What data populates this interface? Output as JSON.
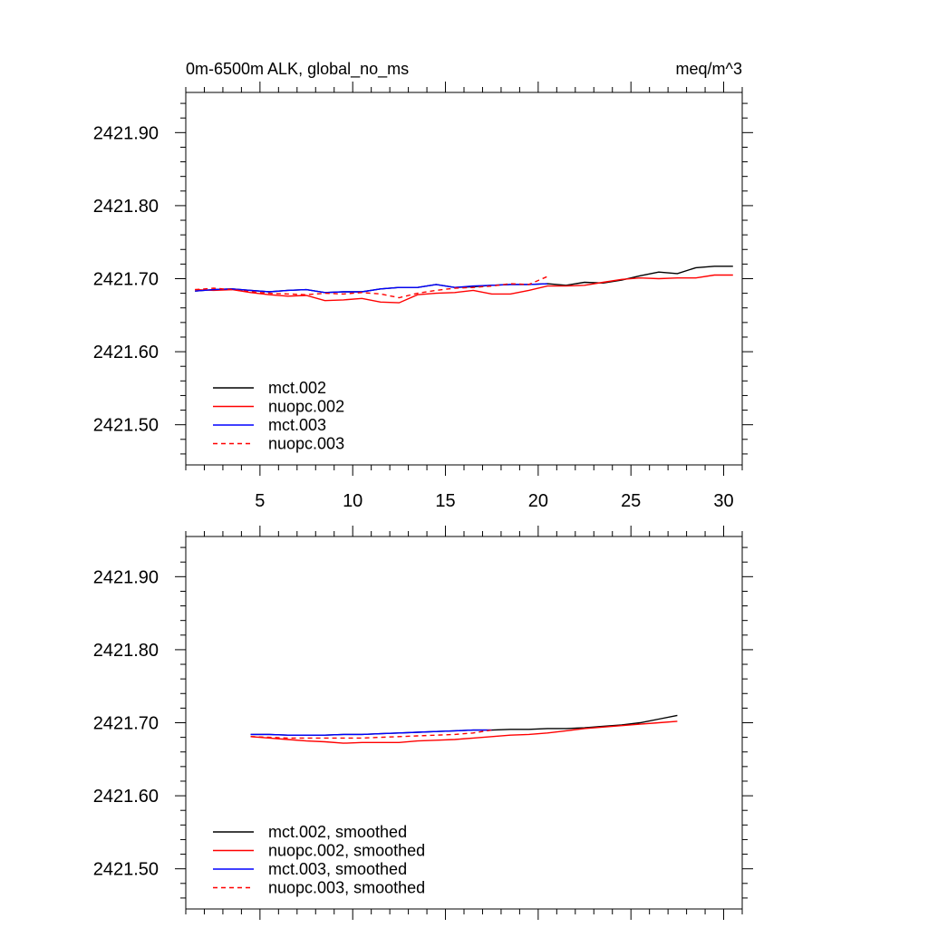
{
  "chart_data": [
    {
      "type": "line",
      "title_left": "0m-6500m ALK, global_no_ms",
      "title_right": "meq/m^3",
      "xlim": [
        1,
        31
      ],
      "ylim": [
        2421.445,
        2421.955
      ],
      "x_ticks": [
        5,
        10,
        15,
        20,
        25,
        30
      ],
      "x_tick_labels": [
        "5",
        "10",
        "15",
        "20",
        "25",
        "30"
      ],
      "y_ticks": [
        2421.5,
        2421.6,
        2421.7,
        2421.8,
        2421.9
      ],
      "y_tick_labels": [
        "2421.50",
        "2421.60",
        "2421.70",
        "2421.80",
        "2421.90"
      ],
      "legend_position": "bottom-left",
      "series": [
        {
          "name": "mct.002",
          "color": "#000000",
          "dash": "solid",
          "x": [
            1.5,
            2.5,
            3.5,
            4.5,
            5.5,
            6.5,
            7.5,
            8.5,
            9.5,
            10.5,
            11.5,
            12.5,
            13.5,
            14.5,
            15.5,
            16.5,
            17.5,
            18.5,
            19.5,
            20.5,
            21.5,
            22.5,
            23.5,
            24.5,
            25.5,
            26.5,
            27.5,
            28.5,
            29.5,
            30.5
          ],
          "values": [
            2421.683,
            2421.685,
            2421.686,
            2421.684,
            2421.682,
            2421.684,
            2421.685,
            2421.681,
            2421.682,
            2421.682,
            2421.686,
            2421.688,
            2421.688,
            2421.692,
            2421.688,
            2421.689,
            2421.691,
            2421.692,
            2421.692,
            2421.693,
            2421.691,
            2421.695,
            2421.694,
            2421.698,
            2421.704,
            2421.709,
            2421.707,
            2421.715,
            2421.717,
            2421.717
          ]
        },
        {
          "name": "nuopc.002",
          "color": "#ff0000",
          "dash": "solid",
          "x": [
            1.5,
            2.5,
            3.5,
            4.5,
            5.5,
            6.5,
            7.5,
            8.5,
            9.5,
            10.5,
            11.5,
            12.5,
            13.5,
            14.5,
            15.5,
            16.5,
            17.5,
            18.5,
            19.5,
            20.5,
            21.5,
            22.5,
            23.5,
            24.5,
            25.5,
            26.5,
            27.5,
            28.5,
            29.5,
            30.5
          ],
          "values": [
            2421.685,
            2421.684,
            2421.685,
            2421.681,
            2421.678,
            2421.676,
            2421.677,
            2421.67,
            2421.671,
            2421.673,
            2421.668,
            2421.667,
            2421.678,
            2421.68,
            2421.681,
            2421.684,
            2421.679,
            2421.679,
            2421.684,
            2421.69,
            2421.69,
            2421.691,
            2421.695,
            2421.699,
            2421.701,
            2421.7,
            2421.701,
            2421.701,
            2421.705,
            2421.705
          ]
        },
        {
          "name": "mct.003",
          "color": "#0000ff",
          "dash": "solid",
          "x": [
            1.5,
            2.5,
            3.5,
            4.5,
            5.5,
            6.5,
            7.5,
            8.5,
            9.5,
            10.5,
            11.5,
            12.5,
            13.5,
            14.5,
            15.5,
            16.5,
            17.5,
            18.5,
            19.5,
            20.5
          ],
          "values": [
            2421.683,
            2421.685,
            2421.686,
            2421.684,
            2421.682,
            2421.684,
            2421.685,
            2421.681,
            2421.682,
            2421.682,
            2421.686,
            2421.688,
            2421.688,
            2421.692,
            2421.688,
            2421.69,
            2421.691,
            2421.692,
            2421.692,
            2421.693
          ]
        },
        {
          "name": "nuopc.003",
          "color": "#ff0000",
          "dash": "dashed",
          "x": [
            1.5,
            2.5,
            3.5,
            4.5,
            5.5,
            6.5,
            7.5,
            8.5,
            9.5,
            10.5,
            11.5,
            12.5,
            13.5,
            14.5,
            15.5,
            16.5,
            17.5,
            18.5,
            19.5,
            20.5
          ],
          "values": [
            2421.685,
            2421.687,
            2421.685,
            2421.682,
            2421.68,
            2421.679,
            2421.678,
            2421.68,
            2421.679,
            2421.681,
            2421.679,
            2421.674,
            2421.68,
            2421.684,
            2421.687,
            2421.688,
            2421.69,
            2421.693,
            2421.692,
            2421.703
          ]
        }
      ]
    },
    {
      "type": "line",
      "xlim": [
        1,
        31
      ],
      "ylim": [
        2421.445,
        2421.955
      ],
      "x_ticks": [
        5,
        10,
        15,
        20,
        25,
        30
      ],
      "y_ticks": [
        2421.5,
        2421.6,
        2421.7,
        2421.8,
        2421.9
      ],
      "y_tick_labels": [
        "2421.50",
        "2421.60",
        "2421.70",
        "2421.80",
        "2421.90"
      ],
      "legend_position": "bottom-left",
      "series": [
        {
          "name": "mct.002, smoothed",
          "color": "#000000",
          "dash": "solid",
          "x": [
            4.5,
            5.5,
            6.5,
            7.5,
            8.5,
            9.5,
            10.5,
            11.5,
            12.5,
            13.5,
            14.5,
            15.5,
            16.5,
            17.5,
            18.5,
            19.5,
            20.5,
            21.5,
            22.5,
            23.5,
            24.5,
            25.5,
            26.5,
            27.5
          ],
          "values": [
            2421.684,
            2421.684,
            2421.683,
            2421.683,
            2421.683,
            2421.684,
            2421.684,
            2421.685,
            2421.686,
            2421.687,
            2421.688,
            2421.689,
            2421.69,
            2421.69,
            2421.691,
            2421.691,
            2421.692,
            2421.692,
            2421.693,
            2421.695,
            2421.697,
            2421.7,
            2421.705,
            2421.71
          ]
        },
        {
          "name": "nuopc.002, smoothed",
          "color": "#ff0000",
          "dash": "solid",
          "x": [
            4.5,
            5.5,
            6.5,
            7.5,
            8.5,
            9.5,
            10.5,
            11.5,
            12.5,
            13.5,
            14.5,
            15.5,
            16.5,
            17.5,
            18.5,
            19.5,
            20.5,
            21.5,
            22.5,
            23.5,
            24.5,
            25.5,
            26.5,
            27.5
          ],
          "values": [
            2421.681,
            2421.679,
            2421.677,
            2421.675,
            2421.674,
            2421.672,
            2421.673,
            2421.673,
            2421.673,
            2421.675,
            2421.676,
            2421.677,
            2421.679,
            2421.681,
            2421.683,
            2421.684,
            2421.686,
            2421.689,
            2421.692,
            2421.694,
            2421.696,
            2421.698,
            2421.7,
            2421.702
          ]
        },
        {
          "name": "mct.003, smoothed",
          "color": "#0000ff",
          "dash": "solid",
          "x": [
            4.5,
            5.5,
            6.5,
            7.5,
            8.5,
            9.5,
            10.5,
            11.5,
            12.5,
            13.5,
            14.5,
            15.5,
            16.5,
            17.5
          ],
          "values": [
            2421.684,
            2421.684,
            2421.683,
            2421.683,
            2421.683,
            2421.684,
            2421.684,
            2421.685,
            2421.686,
            2421.687,
            2421.688,
            2421.689,
            2421.69,
            2421.69
          ]
        },
        {
          "name": "nuopc.003, smoothed",
          "color": "#ff0000",
          "dash": "dashed",
          "x": [
            4.5,
            5.5,
            6.5,
            7.5,
            8.5,
            9.5,
            10.5,
            11.5,
            12.5,
            13.5,
            14.5,
            15.5,
            16.5,
            17.5
          ],
          "values": [
            2421.681,
            2421.68,
            2421.679,
            2421.679,
            2421.679,
            2421.679,
            2421.679,
            2421.68,
            2421.681,
            2421.682,
            2421.683,
            2421.684,
            2421.686,
            2421.69
          ]
        }
      ]
    }
  ]
}
